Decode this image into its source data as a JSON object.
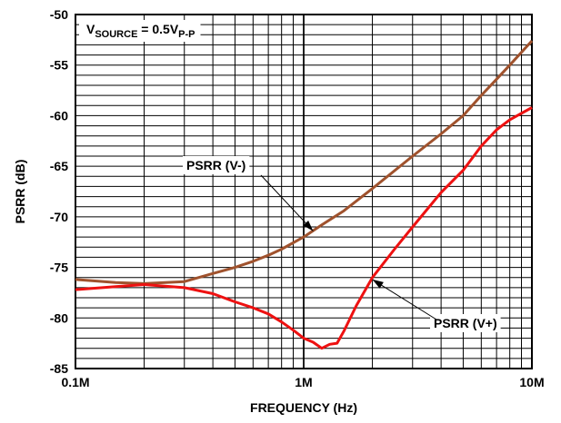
{
  "chart_data": {
    "type": "line",
    "xlabel": "FREQUENCY (Hz)",
    "ylabel": "PSRR (dB)",
    "xscale": "log",
    "xlim": [
      100000,
      10000000
    ],
    "ylim": [
      -85,
      -50
    ],
    "grid": true,
    "x_tick_labels": [
      "0.1M",
      "1M",
      "10M"
    ],
    "y_tick_values": [
      -50,
      -55,
      -60,
      -65,
      -70,
      -75,
      -80,
      -85
    ],
    "y_tick_labels": [
      "-50",
      "-55",
      "-60",
      "-65",
      "-70",
      "-75",
      "-80",
      "-85"
    ],
    "annotation": {
      "main": "V",
      "sub1": "SOURCE",
      "mid": " = 0.5V",
      "sub2": "P-P"
    },
    "series": [
      {
        "name": "PSRR (V-)",
        "color": "#a0522d",
        "x": [
          100000,
          150000,
          200000,
          300000,
          400000,
          500000,
          600000,
          700000,
          800000,
          1000000,
          1200000,
          1500000,
          2000000,
          3000000,
          4000000,
          5000000,
          6000000,
          7000000,
          8000000,
          10000000
        ],
        "y": [
          -76.2,
          -76.5,
          -76.6,
          -76.4,
          -75.6,
          -75.0,
          -74.4,
          -73.8,
          -73.2,
          -72.0,
          -70.8,
          -69.4,
          -67.2,
          -64.0,
          -61.8,
          -60.0,
          -58.0,
          -56.4,
          -55.0,
          -52.6
        ]
      },
      {
        "name": "PSRR (V+)",
        "color": "#ee1111",
        "x": [
          100000,
          150000,
          200000,
          300000,
          400000,
          500000,
          600000,
          700000,
          800000,
          900000,
          1000000,
          1100000,
          1200000,
          1300000,
          1400000,
          1500000,
          1700000,
          2000000,
          2500000,
          3000000,
          4000000,
          5000000,
          6000000,
          7000000,
          8000000,
          10000000
        ],
        "y": [
          -77.2,
          -76.9,
          -76.7,
          -77.0,
          -77.6,
          -78.4,
          -79.0,
          -79.6,
          -80.4,
          -81.2,
          -82.0,
          -82.4,
          -83.0,
          -82.6,
          -82.5,
          -81.3,
          -78.8,
          -76.0,
          -73.2,
          -71.0,
          -67.6,
          -65.4,
          -63.0,
          -61.4,
          -60.4,
          -59.2
        ]
      }
    ],
    "callouts": [
      {
        "text": "PSRR (V-)",
        "series": 0,
        "x": 1100000,
        "y": -71.4
      },
      {
        "text": "PSRR (V+)",
        "series": 1,
        "x": 2000000,
        "y": -76.2
      }
    ]
  }
}
